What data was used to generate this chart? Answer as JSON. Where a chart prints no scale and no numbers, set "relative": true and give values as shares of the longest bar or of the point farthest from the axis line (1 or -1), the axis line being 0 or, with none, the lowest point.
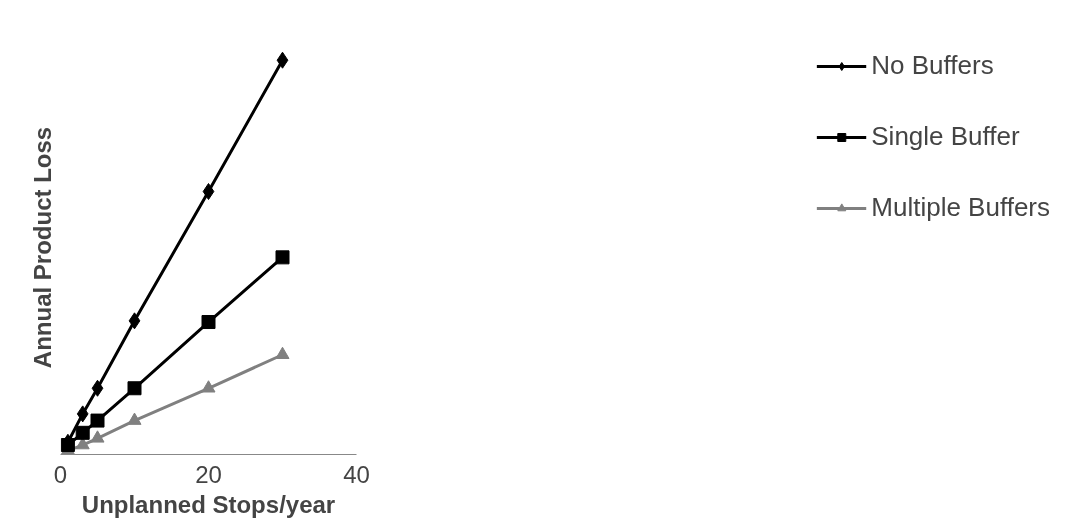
{
  "chart_data": {
    "type": "line",
    "xlabel": "Unplanned Stops/year",
    "ylabel": "Annual Product Loss",
    "x": [
      1,
      3,
      5,
      10,
      20,
      30
    ],
    "xlim": [
      0,
      40
    ],
    "xticks": [
      0,
      20,
      40
    ],
    "relative": true,
    "tick_labels": "x",
    "grid": false,
    "legend": "right",
    "series": [
      {
        "name": "No Buffers",
        "color": "#000000",
        "marker": "diamond",
        "values": [
          0.031,
          0.103,
          0.168,
          0.339,
          0.667,
          1
        ]
      },
      {
        "name": "Single Buffer",
        "color": "#000000",
        "marker": "square",
        "values": [
          0.024,
          0.055,
          0.086,
          0.168,
          0.336,
          0.5
        ]
      },
      {
        "name": "Multiple Buffers",
        "color": "#808080",
        "marker": "triangle",
        "values": [
          0.01,
          0.024,
          0.041,
          0.086,
          0.168,
          0.253
        ]
      }
    ]
  }
}
